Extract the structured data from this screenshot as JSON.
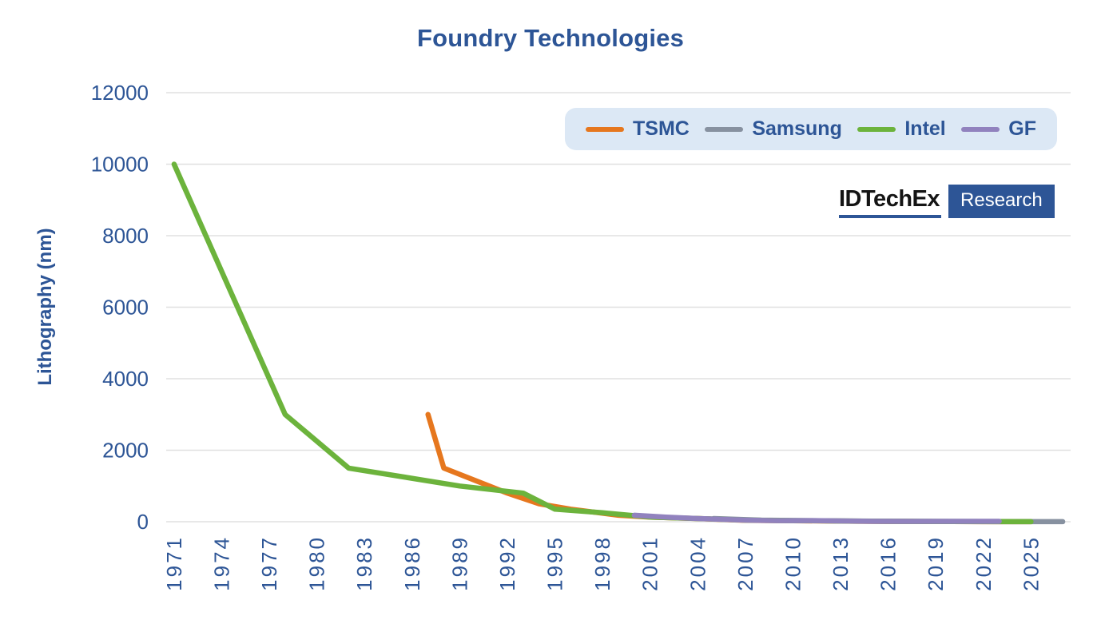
{
  "title": "Foundry Technologies",
  "branding": {
    "logo_text": "IDTechEx",
    "logo_suffix": "Research"
  },
  "colors": {
    "text_blue": "#2d5596",
    "grid": "#e0e0e0",
    "legend_background": "#dce8f5",
    "logo_box": "#2d5596"
  },
  "chart_data": {
    "type": "line",
    "title": "Foundry Technologies",
    "xlabel": "",
    "ylabel": "Lithography (nm)",
    "xlim": [
      1970.5,
      2027.5
    ],
    "ylim": [
      0,
      12000
    ],
    "x_ticks": [
      1971,
      1974,
      1977,
      1980,
      1983,
      1986,
      1989,
      1992,
      1995,
      1998,
      2001,
      2004,
      2007,
      2010,
      2013,
      2016,
      2019,
      2022,
      2025
    ],
    "y_ticks": [
      0,
      2000,
      4000,
      6000,
      8000,
      10000,
      12000
    ],
    "grid": "horizontal",
    "legend_position": "top-right",
    "series": [
      {
        "name": "TSMC",
        "color": "#e6771e",
        "points": [
          [
            1987,
            3000
          ],
          [
            1988,
            1500
          ],
          [
            1992,
            800
          ],
          [
            1994,
            500
          ],
          [
            1996,
            350
          ],
          [
            1999,
            180
          ],
          [
            2001,
            130
          ],
          [
            2004,
            90
          ],
          [
            2007,
            40
          ],
          [
            2010,
            28
          ],
          [
            2013,
            16
          ],
          [
            2016,
            10
          ],
          [
            2018,
            7
          ],
          [
            2020,
            5
          ],
          [
            2022,
            3
          ],
          [
            2025,
            2
          ]
        ]
      },
      {
        "name": "Samsung",
        "color": "#8791a0",
        "points": [
          [
            2005,
            90
          ],
          [
            2008,
            45
          ],
          [
            2011,
            32
          ],
          [
            2014,
            14
          ],
          [
            2017,
            10
          ],
          [
            2020,
            5
          ],
          [
            2022,
            3
          ],
          [
            2025,
            2
          ],
          [
            2027,
            1.4
          ]
        ]
      },
      {
        "name": "Intel",
        "color": "#6cb33c",
        "points": [
          [
            1971,
            10000
          ],
          [
            1978,
            3000
          ],
          [
            1982,
            1500
          ],
          [
            1989,
            1000
          ],
          [
            1993,
            800
          ],
          [
            1995,
            350
          ],
          [
            1998,
            250
          ],
          [
            2001,
            130
          ],
          [
            2004,
            90
          ],
          [
            2007,
            45
          ],
          [
            2010,
            32
          ],
          [
            2013,
            22
          ],
          [
            2016,
            14
          ],
          [
            2019,
            10
          ],
          [
            2022,
            7
          ],
          [
            2025,
            2
          ]
        ]
      },
      {
        "name": "GF",
        "color": "#9182be",
        "points": [
          [
            2000,
            180
          ],
          [
            2002,
            130
          ],
          [
            2004,
            90
          ],
          [
            2007,
            45
          ],
          [
            2009,
            32
          ],
          [
            2012,
            28
          ],
          [
            2015,
            14
          ],
          [
            2018,
            12
          ],
          [
            2023,
            12
          ]
        ]
      }
    ]
  }
}
